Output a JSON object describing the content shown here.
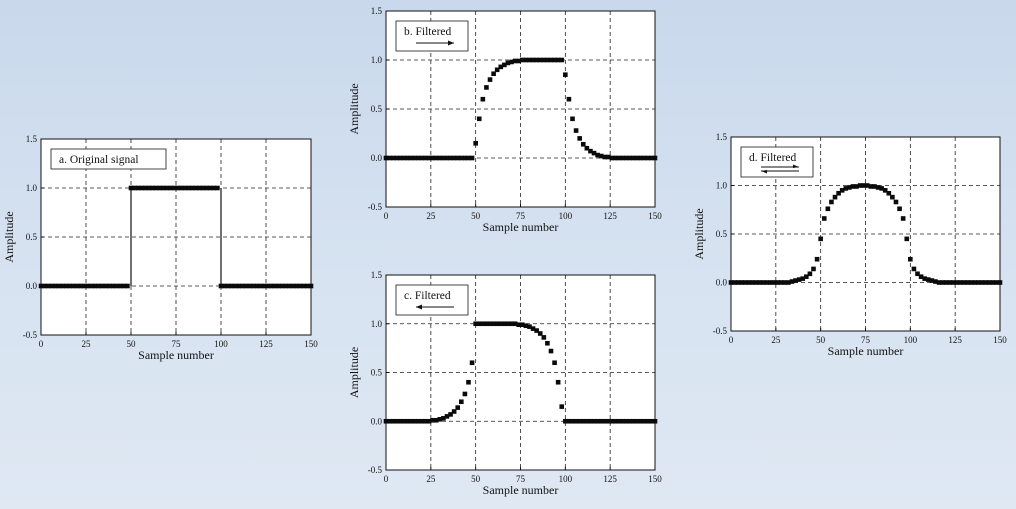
{
  "chart_data": [
    {
      "id": "a",
      "type": "scatter",
      "legend": "a.  Original signal",
      "arrow": "none",
      "xlabel": "Sample number",
      "ylabel": "Amplitude",
      "xlim": [
        0,
        150
      ],
      "ylim": [
        -0.5,
        1.5
      ],
      "xticks": [
        0,
        25,
        50,
        75,
        100,
        125,
        150
      ],
      "yticks": [
        -0.5,
        0.0,
        0.5,
        1.0,
        1.5
      ],
      "ytick_labels": [
        "-0.5",
        "0.0",
        "0.5",
        "1.0",
        "1.5"
      ],
      "grid": true,
      "legend_position": "top-left",
      "series": [
        {
          "x": [
            0,
            2,
            4,
            6,
            8,
            10,
            12,
            14,
            16,
            18,
            20,
            22,
            24,
            26,
            28,
            30,
            32,
            34,
            36,
            38,
            40,
            42,
            44,
            46,
            48,
            50,
            52,
            54,
            56,
            58,
            60,
            62,
            64,
            66,
            68,
            70,
            72,
            74,
            76,
            78,
            80,
            82,
            84,
            86,
            88,
            90,
            92,
            94,
            96,
            98,
            100,
            102,
            104,
            106,
            108,
            110,
            112,
            114,
            116,
            118,
            120,
            122,
            124,
            126,
            128,
            130,
            132,
            134,
            136,
            138,
            140,
            142,
            144,
            146,
            148,
            150
          ],
          "y": [
            0,
            0,
            0,
            0,
            0,
            0,
            0,
            0,
            0,
            0,
            0,
            0,
            0,
            0,
            0,
            0,
            0,
            0,
            0,
            0,
            0,
            0,
            0,
            0,
            0,
            1,
            1,
            1,
            1,
            1,
            1,
            1,
            1,
            1,
            1,
            1,
            1,
            1,
            1,
            1,
            1,
            1,
            1,
            1,
            1,
            1,
            1,
            1,
            1,
            1,
            0,
            0,
            0,
            0,
            0,
            0,
            0,
            0,
            0,
            0,
            0,
            0,
            0,
            0,
            0,
            0,
            0,
            0,
            0,
            0,
            0,
            0,
            0,
            0,
            0,
            0
          ]
        }
      ]
    },
    {
      "id": "b",
      "type": "scatter",
      "legend": "b.  Filtered",
      "arrow": "right",
      "xlabel": "Sample number",
      "ylabel": "Amplitude",
      "xlim": [
        0,
        150
      ],
      "ylim": [
        -0.5,
        1.5
      ],
      "xticks": [
        0,
        25,
        50,
        75,
        100,
        125,
        150
      ],
      "yticks": [
        -0.5,
        0.0,
        0.5,
        1.0,
        1.5
      ],
      "ytick_labels": [
        "-0.5",
        "0.0",
        "0.5",
        "1.0",
        "1.5"
      ],
      "grid": true,
      "legend_position": "top-left",
      "series": [
        {
          "x": [
            0,
            2,
            4,
            6,
            8,
            10,
            12,
            14,
            16,
            18,
            20,
            22,
            24,
            26,
            28,
            30,
            32,
            34,
            36,
            38,
            40,
            42,
            44,
            46,
            48,
            50,
            52,
            54,
            56,
            58,
            60,
            62,
            64,
            66,
            68,
            70,
            72,
            74,
            76,
            78,
            80,
            82,
            84,
            86,
            88,
            90,
            92,
            94,
            96,
            98,
            100,
            102,
            104,
            106,
            108,
            110,
            112,
            114,
            116,
            118,
            120,
            122,
            124,
            126,
            128,
            130,
            132,
            134,
            136,
            138,
            140,
            142,
            144,
            146,
            148,
            150
          ],
          "y": [
            0,
            0,
            0,
            0,
            0,
            0,
            0,
            0,
            0,
            0,
            0,
            0,
            0,
            0,
            0,
            0,
            0,
            0,
            0,
            0,
            0,
            0,
            0,
            0,
            0,
            0.15,
            0.4,
            0.6,
            0.72,
            0.8,
            0.86,
            0.9,
            0.93,
            0.95,
            0.97,
            0.98,
            0.99,
            0.99,
            1,
            1,
            1,
            1,
            1,
            1,
            1,
            1,
            1,
            1,
            1,
            1,
            0.85,
            0.6,
            0.4,
            0.28,
            0.2,
            0.14,
            0.1,
            0.07,
            0.05,
            0.03,
            0.02,
            0.01,
            0.01,
            0,
            0,
            0,
            0,
            0,
            0,
            0,
            0,
            0,
            0,
            0,
            0,
            0
          ]
        }
      ]
    },
    {
      "id": "c",
      "type": "scatter",
      "legend": "c.  Filtered",
      "arrow": "left",
      "xlabel": "Sample number",
      "ylabel": "Amplitude",
      "xlim": [
        0,
        150
      ],
      "ylim": [
        -0.5,
        1.5
      ],
      "xticks": [
        0,
        25,
        50,
        75,
        100,
        125,
        150
      ],
      "yticks": [
        -0.5,
        0.0,
        0.5,
        1.0,
        1.5
      ],
      "ytick_labels": [
        "-0.5",
        "0.0",
        "0.5",
        "1.0",
        "1.5"
      ],
      "grid": true,
      "legend_position": "top-left",
      "series": [
        {
          "x": [
            0,
            2,
            4,
            6,
            8,
            10,
            12,
            14,
            16,
            18,
            20,
            22,
            24,
            26,
            28,
            30,
            32,
            34,
            36,
            38,
            40,
            42,
            44,
            46,
            48,
            50,
            52,
            54,
            56,
            58,
            60,
            62,
            64,
            66,
            68,
            70,
            72,
            74,
            76,
            78,
            80,
            82,
            84,
            86,
            88,
            90,
            92,
            94,
            96,
            98,
            100,
            102,
            104,
            106,
            108,
            110,
            112,
            114,
            116,
            118,
            120,
            122,
            124,
            126,
            128,
            130,
            132,
            134,
            136,
            138,
            140,
            142,
            144,
            146,
            148,
            150
          ],
          "y": [
            0,
            0,
            0,
            0,
            0,
            0,
            0,
            0,
            0,
            0,
            0,
            0,
            0,
            0.01,
            0.01,
            0.02,
            0.03,
            0.05,
            0.07,
            0.1,
            0.14,
            0.2,
            0.28,
            0.4,
            0.6,
            1,
            1,
            1,
            1,
            1,
            1,
            1,
            1,
            1,
            1,
            1,
            1,
            0.99,
            0.99,
            0.98,
            0.97,
            0.95,
            0.93,
            0.9,
            0.86,
            0.8,
            0.72,
            0.6,
            0.4,
            0.15,
            0,
            0,
            0,
            0,
            0,
            0,
            0,
            0,
            0,
            0,
            0,
            0,
            0,
            0,
            0,
            0,
            0,
            0,
            0,
            0,
            0,
            0,
            0,
            0,
            0,
            0
          ]
        }
      ]
    },
    {
      "id": "d",
      "type": "scatter",
      "legend": "d.  Filtered",
      "arrow": "both",
      "xlabel": "Sample number",
      "ylabel": "Amplitude",
      "xlim": [
        0,
        150
      ],
      "ylim": [
        -0.5,
        1.5
      ],
      "xticks": [
        0,
        25,
        50,
        75,
        100,
        125,
        150
      ],
      "yticks": [
        -0.5,
        0.0,
        0.5,
        1.0,
        1.5
      ],
      "ytick_labels": [
        "-0.5",
        "0.0",
        "0.5",
        "1.0",
        "1.5"
      ],
      "grid": true,
      "legend_position": "top-left",
      "series": [
        {
          "x": [
            0,
            2,
            4,
            6,
            8,
            10,
            12,
            14,
            16,
            18,
            20,
            22,
            24,
            26,
            28,
            30,
            32,
            34,
            36,
            38,
            40,
            42,
            44,
            46,
            48,
            50,
            52,
            54,
            56,
            58,
            60,
            62,
            64,
            66,
            68,
            70,
            72,
            74,
            76,
            78,
            80,
            82,
            84,
            86,
            88,
            90,
            92,
            94,
            96,
            98,
            100,
            102,
            104,
            106,
            108,
            110,
            112,
            114,
            116,
            118,
            120,
            122,
            124,
            126,
            128,
            130,
            132,
            134,
            136,
            138,
            140,
            142,
            144,
            146,
            148,
            150
          ],
          "y": [
            0,
            0,
            0,
            0,
            0,
            0,
            0,
            0,
            0,
            0,
            0,
            0,
            0,
            0,
            0,
            0,
            0,
            0.01,
            0.02,
            0.03,
            0.04,
            0.06,
            0.09,
            0.14,
            0.24,
            0.45,
            0.66,
            0.76,
            0.83,
            0.88,
            0.92,
            0.95,
            0.97,
            0.98,
            0.99,
            0.99,
            1,
            1,
            1,
            0.99,
            0.99,
            0.98,
            0.97,
            0.95,
            0.92,
            0.88,
            0.83,
            0.76,
            0.66,
            0.45,
            0.24,
            0.14,
            0.09,
            0.06,
            0.04,
            0.03,
            0.02,
            0.01,
            0,
            0,
            0,
            0,
            0,
            0,
            0,
            0,
            0,
            0,
            0,
            0,
            0,
            0,
            0,
            0,
            0,
            0
          ]
        }
      ]
    }
  ]
}
